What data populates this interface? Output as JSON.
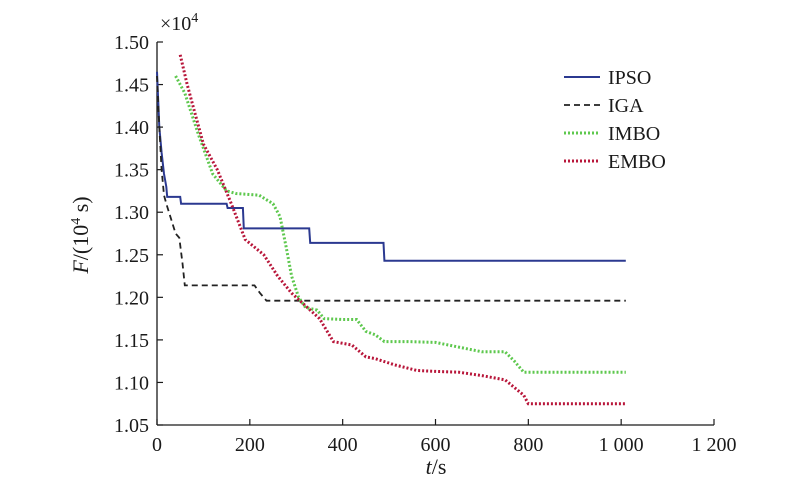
{
  "chart_data": {
    "type": "line",
    "x_axis": {
      "label_var": "t",
      "label_unit": "/s",
      "range": [
        0,
        1200
      ],
      "ticks": [
        0,
        200,
        400,
        600,
        800,
        1000,
        1200
      ],
      "tick_labels": [
        "0",
        "200",
        "400",
        "600",
        "800",
        "1 000",
        "1 200"
      ]
    },
    "y_axis": {
      "label_var": "F",
      "label_pre": "/(10",
      "label_sup": "4",
      "label_post": " s)",
      "multiplier_base": "×10",
      "multiplier_exp": "4",
      "range": [
        1.05,
        1.5
      ],
      "ticks": [
        1.05,
        1.1,
        1.15,
        1.2,
        1.25,
        1.3,
        1.35,
        1.4,
        1.45,
        1.5
      ],
      "tick_labels": [
        "1.05",
        "1.10",
        "1.15",
        "1.20",
        "1.25",
        "1.30",
        "1.35",
        "1.40",
        "1.45",
        "1.50"
      ]
    },
    "legend_position": "top-right",
    "series": [
      {
        "name": "IPSO",
        "color": "#2b3990",
        "style": "solid",
        "points": [
          [
            0,
            1.465
          ],
          [
            5,
            1.4
          ],
          [
            10,
            1.37
          ],
          [
            15,
            1.345
          ],
          [
            20,
            1.33
          ],
          [
            22,
            1.318
          ],
          [
            50,
            1.318
          ],
          [
            52,
            1.31
          ],
          [
            150,
            1.31
          ],
          [
            152,
            1.305
          ],
          [
            185,
            1.305
          ],
          [
            187,
            1.281
          ],
          [
            328,
            1.281
          ],
          [
            330,
            1.264
          ],
          [
            488,
            1.264
          ],
          [
            490,
            1.243
          ],
          [
            1010,
            1.243
          ]
        ]
      },
      {
        "name": "IGA",
        "color": "#222222",
        "style": "dashed",
        "points": [
          [
            0,
            1.46
          ],
          [
            5,
            1.4
          ],
          [
            10,
            1.35
          ],
          [
            15,
            1.32
          ],
          [
            20,
            1.31
          ],
          [
            40,
            1.275
          ],
          [
            48,
            1.27
          ],
          [
            55,
            1.24
          ],
          [
            60,
            1.214
          ],
          [
            210,
            1.214
          ],
          [
            222,
            1.205
          ],
          [
            236,
            1.196
          ],
          [
            1010,
            1.196
          ]
        ]
      },
      {
        "name": "IMBO",
        "color": "#5ec84e",
        "style": "dotted",
        "points": [
          [
            40,
            1.46
          ],
          [
            60,
            1.44
          ],
          [
            90,
            1.39
          ],
          [
            120,
            1.345
          ],
          [
            150,
            1.325
          ],
          [
            170,
            1.322
          ],
          [
            220,
            1.32
          ],
          [
            235,
            1.315
          ],
          [
            250,
            1.31
          ],
          [
            265,
            1.295
          ],
          [
            278,
            1.26
          ],
          [
            290,
            1.225
          ],
          [
            305,
            1.2
          ],
          [
            320,
            1.188
          ],
          [
            345,
            1.185
          ],
          [
            360,
            1.175
          ],
          [
            400,
            1.174
          ],
          [
            430,
            1.174
          ],
          [
            450,
            1.16
          ],
          [
            470,
            1.156
          ],
          [
            490,
            1.148
          ],
          [
            540,
            1.148
          ],
          [
            600,
            1.147
          ],
          [
            700,
            1.136
          ],
          [
            750,
            1.136
          ],
          [
            770,
            1.125
          ],
          [
            790,
            1.112
          ],
          [
            1010,
            1.112
          ]
        ]
      },
      {
        "name": "EMBO",
        "color": "#b8163a",
        "style": "dotted",
        "points": [
          [
            50,
            1.485
          ],
          [
            65,
            1.45
          ],
          [
            80,
            1.42
          ],
          [
            100,
            1.38
          ],
          [
            130,
            1.35
          ],
          [
            160,
            1.31
          ],
          [
            190,
            1.268
          ],
          [
            230,
            1.25
          ],
          [
            260,
            1.225
          ],
          [
            290,
            1.205
          ],
          [
            320,
            1.19
          ],
          [
            350,
            1.175
          ],
          [
            380,
            1.148
          ],
          [
            420,
            1.144
          ],
          [
            450,
            1.13
          ],
          [
            470,
            1.128
          ],
          [
            510,
            1.121
          ],
          [
            560,
            1.114
          ],
          [
            600,
            1.113
          ],
          [
            650,
            1.112
          ],
          [
            700,
            1.108
          ],
          [
            750,
            1.103
          ],
          [
            790,
            1.085
          ],
          [
            800,
            1.075
          ],
          [
            1010,
            1.075
          ]
        ]
      }
    ]
  }
}
